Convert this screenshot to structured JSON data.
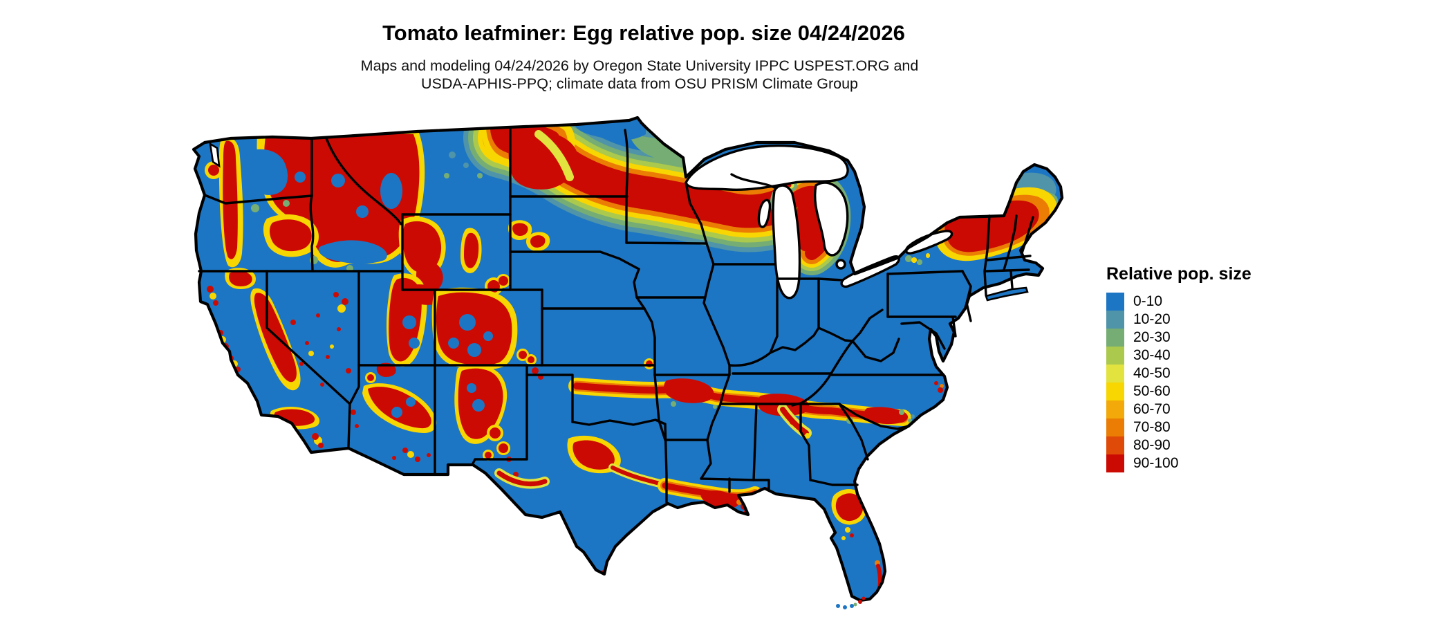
{
  "header": {
    "title": "Tomato leafminer: Egg relative pop. size 04/24/2026",
    "subtitle_lines": [
      "Maps and modeling 04/24/2026 by Oregon State University IPPC USPEST.ORG and",
      "USDA-APHIS-PPQ; climate data from OSU PRISM Climate Group"
    ]
  },
  "legend": {
    "title": "Relative pop. size",
    "items": [
      {
        "label": "0-10",
        "color": "#1d76c4"
      },
      {
        "label": "10-20",
        "color": "#4f94a8"
      },
      {
        "label": "20-30",
        "color": "#76ad74"
      },
      {
        "label": "30-40",
        "color": "#abc94c"
      },
      {
        "label": "40-50",
        "color": "#e2e33e"
      },
      {
        "label": "50-60",
        "color": "#f8d602"
      },
      {
        "label": "60-70",
        "color": "#f2a909"
      },
      {
        "label": "70-80",
        "color": "#eb7d04"
      },
      {
        "label": "80-90",
        "color": "#e04a08"
      },
      {
        "label": "90-100",
        "color": "#cc0a04"
      }
    ]
  },
  "map": {
    "region_label": "Contiguous United States",
    "land_base_color": "#1d76c4",
    "state_border_color": "#000000",
    "water_color": "#ffffff",
    "background_color": "#ffffff"
  }
}
